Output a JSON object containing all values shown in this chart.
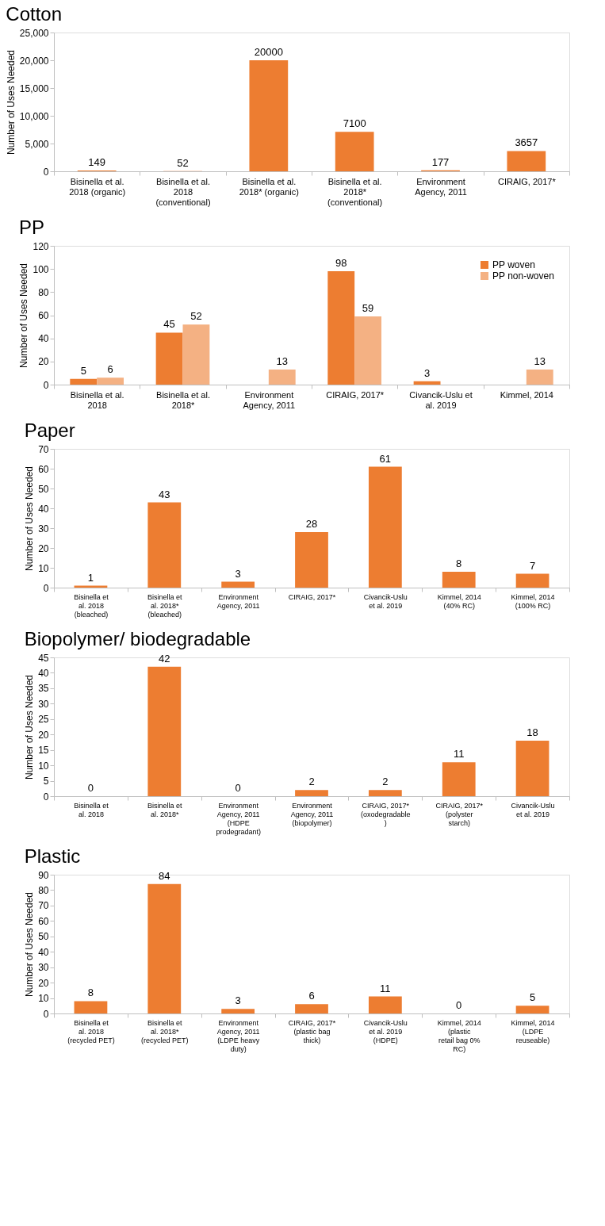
{
  "chart_data": [
    {
      "type": "bar",
      "title": "Cotton",
      "ylabel": "Number of Uses Needed",
      "categories": [
        "Bisinella et al. 2018 (organic)",
        "Bisinella et al. 2018 (conventional)",
        "Bisinella et al. 2018* (organic)",
        "Bisinella et al. 2018* (conventional)",
        "Environment Agency, 2011",
        "CIRAIG, 2017*"
      ],
      "values": [
        149,
        52,
        20000,
        7100,
        177,
        3657
      ],
      "color": "#ed7d31",
      "ylim": [
        0,
        25000
      ],
      "yticks": [
        0,
        {
          "value": 5000,
          "label": "5,000"
        },
        {
          "value": 10000,
          "label": "10,000"
        },
        {
          "value": 15000,
          "label": "15,000"
        },
        {
          "value": 20000,
          "label": "20,000"
        },
        {
          "value": 25000,
          "label": "25,000"
        }
      ],
      "data_labels": true,
      "grid": false
    },
    {
      "type": "bar",
      "title": "PP",
      "ylabel": "Number of Uses Needed",
      "categories": [
        "Bisinella et al. 2018",
        "Bisinella et al. 2018*",
        "Environment Agency, 2011",
        "CIRAIG, 2017*",
        "Civancik-Uslu et al. 2019",
        "Kimmel, 2014"
      ],
      "series": [
        {
          "name": "PP woven",
          "color": "#ed7d31",
          "values": [
            5,
            45,
            null,
            98,
            3,
            null
          ]
        },
        {
          "name": "PP non-woven",
          "color": "#f4b183",
          "values": [
            6,
            52,
            13,
            59,
            null,
            13
          ]
        }
      ],
      "ylim": [
        0,
        120
      ],
      "yticks": [
        0,
        20,
        40,
        60,
        80,
        100,
        120
      ],
      "data_labels": true,
      "legend": "top right",
      "grid": false
    },
    {
      "type": "bar",
      "title": "Paper",
      "ylabel": "Number of Uses Needed",
      "categories": [
        "Bisinella et al. 2018 (bleached)",
        "Bisinella et al. 2018* (bleached)",
        "Environment Agency, 2011",
        "CIRAIG, 2017*",
        "Civancik-Uslu et al. 2019",
        "Kimmel, 2014 (40% RC)",
        "Kimmel, 2014 (100% RC)"
      ],
      "values": [
        1,
        43,
        3,
        28,
        61,
        8,
        7
      ],
      "color": "#ed7d31",
      "ylim": [
        0,
        70
      ],
      "yticks": [
        0,
        10,
        20,
        30,
        40,
        50,
        60,
        70
      ],
      "data_labels": true,
      "grid": false
    },
    {
      "type": "bar",
      "title": "Biopolymer/ biodegradable",
      "ylabel": "Number of Uses Needed",
      "categories": [
        "Bisinella et al. 2018",
        "Bisinella et al. 2018*",
        "Environment Agency, 2011 (HDPE prodegradant)",
        "Environment Agency, 2011 (biopolymer)",
        "CIRAIG, 2017* (oxodegradable)",
        "CIRAIG, 2017* (polyster starch)",
        "Civancik-Uslu et al. 2019"
      ],
      "values": [
        0,
        42,
        0,
        2,
        2,
        11,
        18
      ],
      "color": "#ed7d31",
      "ylim": [
        0,
        45
      ],
      "yticks": [
        0,
        5,
        10,
        15,
        20,
        25,
        30,
        35,
        40,
        45
      ],
      "data_labels": true,
      "grid": false
    },
    {
      "type": "bar",
      "title": "Plastic",
      "ylabel": "Number of Uses Needed",
      "categories": [
        "Bisinella et al. 2018 (recycled PET)",
        "Bisinella et al. 2018* (recycled PET)",
        "Environment Agency, 2011 (LDPE heavy duty)",
        "CIRAIG, 2017* (plastic bag thick)",
        "Civancik-Uslu et al. 2019 (HDPE)",
        "Kimmel, 2014 (plastic retail bag 0% RC)",
        "Kimmel, 2014 (LDPE reuseable)"
      ],
      "values": [
        8,
        84,
        3,
        6,
        11,
        0,
        5
      ],
      "color": "#ed7d31",
      "ylim": [
        0,
        90
      ],
      "yticks": [
        0,
        10,
        20,
        30,
        40,
        50,
        60,
        70,
        80,
        90
      ],
      "data_labels": true,
      "grid": false
    }
  ]
}
